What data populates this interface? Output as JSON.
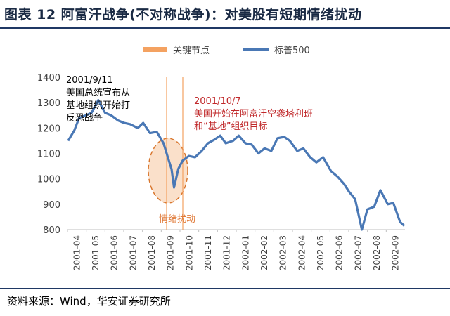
{
  "header": {
    "title": "图表 12 阿富汗战争(不对称战争)：对美股有短期情绪扰动"
  },
  "footer": {
    "source": "资料来源：Wind，华安证券研究所"
  },
  "chart_data": {
    "type": "line",
    "title": "",
    "xlabel": "",
    "ylabel": "",
    "ylim": [
      800,
      1400
    ],
    "y_ticks": [
      800,
      900,
      1000,
      1100,
      1200,
      1300,
      1400
    ],
    "x_tick_labels": [
      "2001-04",
      "2001-05",
      "2001-06",
      "2001-07",
      "2001-08",
      "2001-09",
      "2001-10",
      "2001-11",
      "2001-12",
      "2002-01",
      "2002-02",
      "2002-03",
      "2002-04",
      "2002-05",
      "2002-06",
      "2002-07",
      "2002-08",
      "2002-09"
    ],
    "legend": [
      {
        "name": "关键节点",
        "color": "#f4a261"
      },
      {
        "name": "标普500",
        "color": "#4a78b5"
      }
    ],
    "series": [
      {
        "name": "标普500",
        "color": "#4a78b5",
        "x": [
          "2001-04-02",
          "2001-04-12",
          "2001-04-20",
          "2001-05-01",
          "2001-05-10",
          "2001-05-21",
          "2001-06-01",
          "2001-06-11",
          "2001-06-22",
          "2001-07-02",
          "2001-07-12",
          "2001-07-24",
          "2001-08-02",
          "2001-08-13",
          "2001-08-24",
          "2001-09-04",
          "2001-09-10",
          "2001-09-17",
          "2001-09-21",
          "2001-09-28",
          "2001-10-05",
          "2001-10-15",
          "2001-10-25",
          "2001-11-05",
          "2001-11-15",
          "2001-11-26",
          "2001-12-05",
          "2001-12-14",
          "2001-12-26",
          "2002-01-04",
          "2002-01-15",
          "2002-01-25",
          "2002-02-05",
          "2002-02-15",
          "2002-02-26",
          "2002-03-08",
          "2002-03-19",
          "2002-03-28",
          "2002-04-09",
          "2002-04-19",
          "2002-04-30",
          "2002-05-10",
          "2002-05-21",
          "2002-06-03",
          "2002-06-13",
          "2002-06-24",
          "2002-07-02",
          "2002-07-12",
          "2002-07-23",
          "2002-08-01",
          "2002-08-12",
          "2002-08-22",
          "2002-09-03",
          "2002-09-12",
          "2002-09-23",
          "2002-09-30"
        ],
        "values": [
          1150,
          1190,
          1240,
          1250,
          1260,
          1310,
          1260,
          1250,
          1230,
          1220,
          1215,
          1200,
          1220,
          1180,
          1185,
          1140,
          1092,
          1038,
          966,
          1040,
          1072,
          1090,
          1085,
          1110,
          1140,
          1155,
          1170,
          1140,
          1150,
          1170,
          1140,
          1135,
          1100,
          1120,
          1110,
          1160,
          1165,
          1150,
          1110,
          1120,
          1085,
          1065,
          1085,
          1030,
          1010,
          980,
          950,
          920,
          800,
          880,
          890,
          955,
          900,
          905,
          830,
          815
        ]
      }
    ],
    "key_events": [
      {
        "date": "2001-09-11",
        "label": "2001/9/11\n美国总统宣布从\n基地组织开始打\n反恐战争"
      },
      {
        "date": "2001-10-07",
        "label": "2001/10/7\n美国开始在阿富汗空袭塔利班\n和“基地”组织目标"
      }
    ],
    "annotations": [
      {
        "label": "情绪扰动",
        "color": "#e07b3a"
      }
    ]
  }
}
